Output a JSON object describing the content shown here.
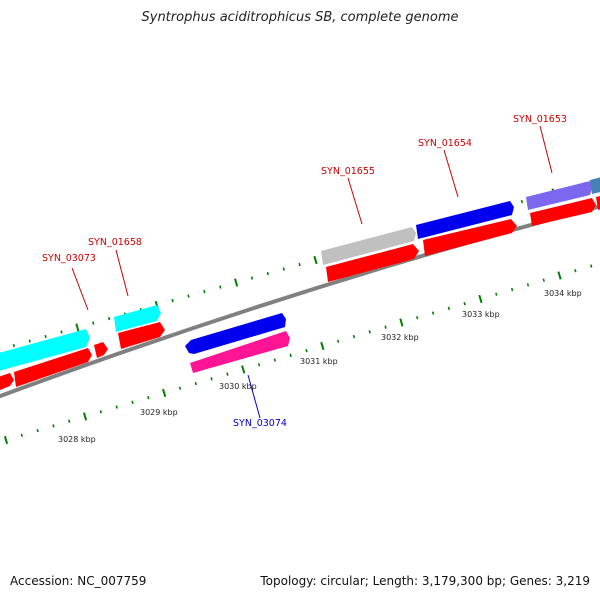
{
  "title": "Syntrophus aciditrophicus SB, complete genome",
  "footer": {
    "accession": "Accession: NC_007759",
    "summary": "Topology: circular; Length: 3,179,300 bp; Genes: 3,219"
  },
  "axis": {
    "tick_labels": [
      "3028 kbp",
      "3029 kbp",
      "3030 kbp",
      "3031 kbp",
      "3032 kbp",
      "3033 kbp",
      "3034 kbp"
    ]
  },
  "gene_labels": {
    "syn_03073": "SYN_03073",
    "syn_01658": "SYN_01658",
    "syn_01655": "SYN_01655",
    "syn_01654": "SYN_01654",
    "syn_01653": "SYN_01653",
    "syn_03074": "SYN_03074"
  },
  "colors": {
    "forward_label": "#cc0000",
    "reverse_label": "#0000cc",
    "cds_red": "#ff0000",
    "cyan": "#00ffff",
    "blue": "#0000ee",
    "magenta": "#ff1493",
    "grey": "#c0c0c0",
    "lilac": "#7b68ee",
    "steel": "#4682b4",
    "backbone": "#808080",
    "tick_green": "#008000"
  }
}
